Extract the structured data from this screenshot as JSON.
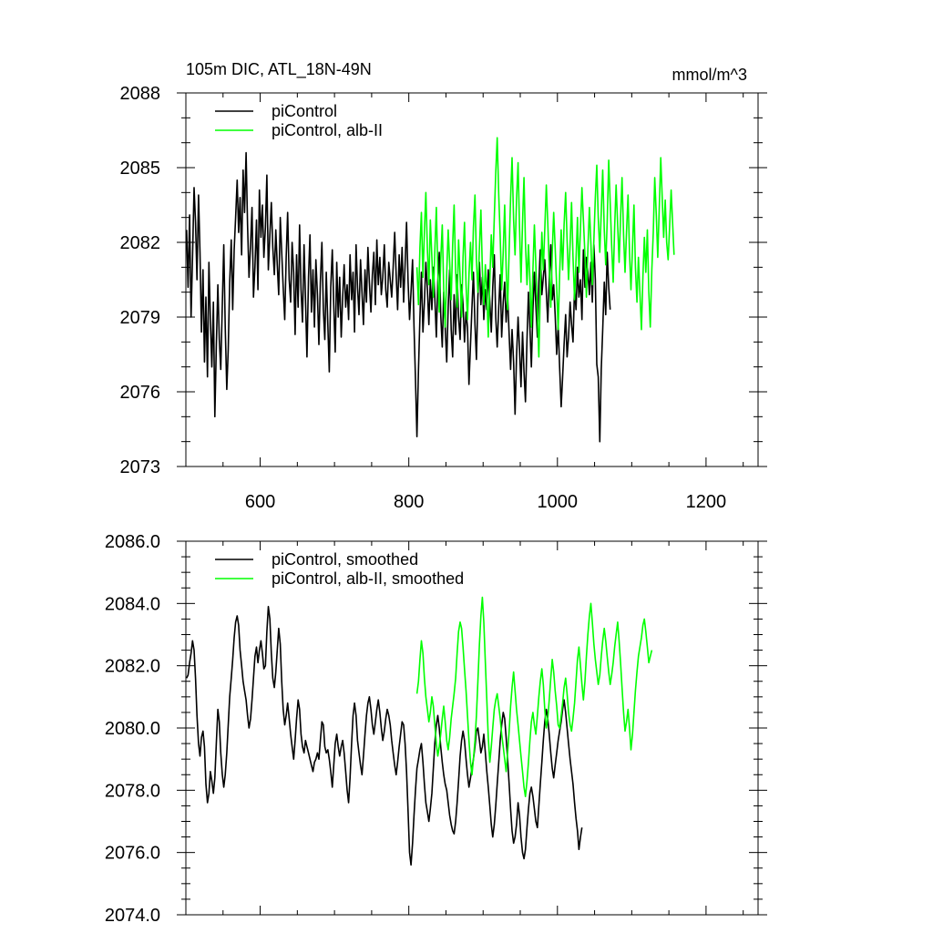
{
  "figure": {
    "title_left": "105m DIC, ATL_18N-49N",
    "title_right": "mmol/m^3"
  },
  "chart_data": [
    {
      "type": "line",
      "xlim": [
        500,
        1270
      ],
      "ylim": [
        2073,
        2088
      ],
      "xticks": [
        600,
        800,
        1000,
        1200
      ],
      "xtick_labels": [
        "600",
        "800",
        "1000",
        "1200"
      ],
      "yticks": [
        2073,
        2076,
        2079,
        2082,
        2085,
        2088
      ],
      "ytick_labels": [
        "2073",
        "2076",
        "2079",
        "2082",
        "2085",
        "2088"
      ],
      "legend_position": "top-left",
      "series": [
        {
          "name": "piControl",
          "color": "#000000",
          "x_start": 501,
          "x_step": 2,
          "values": [
            2082.5,
            2080.2,
            2083.1,
            2079.0,
            2081.4,
            2084.2,
            2082.8,
            2080.5,
            2083.9,
            2081.6,
            2078.4,
            2080.9,
            2077.2,
            2079.8,
            2076.6,
            2081.2,
            2078.9,
            2077.0,
            2079.6,
            2075.0,
            2077.8,
            2080.3,
            2078.1,
            2076.9,
            2079.5,
            2081.9,
            2078.6,
            2076.1,
            2077.7,
            2080.4,
            2082.1,
            2079.3,
            2081.7,
            2083.0,
            2084.5,
            2082.4,
            2083.8,
            2081.5,
            2084.9,
            2083.2,
            2085.6,
            2082.7,
            2080.6,
            2081.9,
            2083.4,
            2079.8,
            2081.0,
            2082.9,
            2080.1,
            2084.1,
            2082.2,
            2083.5,
            2081.4,
            2082.6,
            2084.7,
            2080.9,
            2082.3,
            2083.6,
            2081.8,
            2080.7,
            2082.5,
            2081.1,
            2079.9,
            2083.0,
            2081.6,
            2080.2,
            2078.9,
            2081.4,
            2083.2,
            2080.5,
            2079.6,
            2082.0,
            2080.8,
            2078.3,
            2081.5,
            2079.4,
            2082.7,
            2080.1,
            2078.8,
            2081.9,
            2079.7,
            2077.4,
            2080.6,
            2082.3,
            2079.2,
            2080.9,
            2078.6,
            2081.3,
            2079.9,
            2077.9,
            2080.4,
            2082.0,
            2079.3,
            2078.1,
            2080.8,
            2078.7,
            2076.8,
            2080.2,
            2081.7,
            2079.5,
            2077.6,
            2081.2,
            2079.0,
            2080.6,
            2078.2,
            2079.8,
            2081.1,
            2079.4,
            2080.3,
            2078.9,
            2081.5,
            2079.7,
            2080.8,
            2078.4,
            2081.9,
            2080.2,
            2079.1,
            2081.3,
            2080.0,
            2078.7,
            2080.9,
            2079.6,
            2081.8,
            2080.4,
            2079.2,
            2080.7,
            2081.6,
            2079.5,
            2082.1,
            2080.3,
            2081.4,
            2079.9,
            2080.6,
            2081.9,
            2080.1,
            2079.4,
            2081.2,
            2080.5,
            2079.8,
            2081.0,
            2082.4,
            2080.7,
            2079.3,
            2081.5,
            2080.2,
            2081.8,
            2079.6,
            2081.1,
            2082.8,
            2080.4,
            2078.9,
            2080.0,
            2081.3,
            2078.6,
            2076.5,
            2074.2,
            2076.9,
            2079.0,
            2080.8,
            2078.4,
            2079.6,
            2081.2,
            2080.1,
            2078.7,
            2080.5,
            2079.3,
            2081.0,
            2079.8,
            2078.2,
            2080.4,
            2081.6,
            2079.1,
            2077.8,
            2080.0,
            2078.6,
            2077.2,
            2079.4,
            2080.9,
            2078.5,
            2077.4,
            2079.9,
            2078.3,
            2080.7,
            2079.0,
            2078.1,
            2080.3,
            2079.5,
            2078.0,
            2079.2,
            2078.6,
            2076.3,
            2077.9,
            2079.4,
            2080.8,
            2078.7,
            2077.3,
            2079.8,
            2081.2,
            2079.5,
            2080.6,
            2078.9,
            2080.1,
            2079.3,
            2080.9,
            2079.6,
            2078.4,
            2080.2,
            2081.5,
            2079.0,
            2077.8,
            2079.4,
            2080.7,
            2078.2,
            2079.6,
            2080.4,
            2078.8,
            2079.9,
            2078.3,
            2076.9,
            2078.5,
            2077.2,
            2075.1,
            2077.4,
            2079.0,
            2077.7,
            2076.2,
            2078.4,
            2076.8,
            2075.6,
            2078.1,
            2080.0,
            2078.6,
            2077.0,
            2079.3,
            2080.8,
            2079.5,
            2078.2,
            2080.4,
            2081.7,
            2079.9,
            2080.6,
            2081.3,
            2080.0,
            2078.8,
            2080.5,
            2081.9,
            2079.7,
            2080.3,
            2079.1,
            2077.5,
            2078.7,
            2077.0,
            2075.4,
            2076.6,
            2077.9,
            2079.1,
            2077.4,
            2078.2,
            2079.6,
            2078.7,
            2078.0,
            2080.2,
            2079.3,
            2081.0,
            2079.8,
            2080.5,
            2078.9,
            2081.7,
            2080.2,
            2081.4,
            2080.8,
            2079.9,
            2081.2,
            2079.6,
            2081.9,
            2080.5,
            2077.1,
            2076.6,
            2074.0,
            2076.9,
            2078.5,
            2080.4,
            2079.1,
            2081.6,
            2080.2,
            2079.3
          ]
        },
        {
          "name": "piControl, alb-II",
          "color": "#00ff00",
          "x_start": 811,
          "x_step": 2,
          "values": [
            2081.0,
            2079.5,
            2081.8,
            2083.2,
            2080.6,
            2082.4,
            2084.0,
            2081.7,
            2080.3,
            2082.9,
            2081.4,
            2079.8,
            2081.6,
            2083.4,
            2080.9,
            2079.2,
            2081.3,
            2082.7,
            2080.1,
            2078.6,
            2080.8,
            2082.5,
            2081.2,
            2079.7,
            2081.9,
            2083.5,
            2080.8,
            2079.4,
            2082.1,
            2080.6,
            2079.0,
            2081.4,
            2082.8,
            2080.3,
            2078.9,
            2080.7,
            2082.0,
            2080.5,
            2082.6,
            2083.9,
            2081.3,
            2080.0,
            2081.8,
            2083.3,
            2080.9,
            2079.5,
            2081.1,
            2080.0,
            2078.2,
            2080.5,
            2082.3,
            2081.0,
            2083.0,
            2084.8,
            2086.2,
            2083.9,
            2082.2,
            2080.1,
            2081.6,
            2083.5,
            2081.0,
            2079.3,
            2081.7,
            2083.8,
            2085.4,
            2082.9,
            2081.5,
            2083.7,
            2085.2,
            2082.6,
            2080.4,
            2082.8,
            2084.6,
            2082.0,
            2080.3,
            2081.9,
            2080.5,
            2078.6,
            2080.9,
            2082.7,
            2081.1,
            2079.2,
            2077.4,
            2080.1,
            2082.4,
            2080.9,
            2082.5,
            2084.3,
            2082.8,
            2081.0,
            2079.4,
            2081.6,
            2083.2,
            2081.8,
            2080.2,
            2078.5,
            2080.7,
            2082.5,
            2080.9,
            2082.7,
            2084.0,
            2082.1,
            2080.5,
            2081.9,
            2083.6,
            2081.4,
            2079.7,
            2081.3,
            2083.0,
            2080.8,
            2082.6,
            2084.2,
            2082.9,
            2081.5,
            2079.8,
            2081.7,
            2083.4,
            2082.0,
            2080.3,
            2082.1,
            2083.8,
            2085.1,
            2083.0,
            2081.6,
            2083.2,
            2084.9,
            2082.5,
            2081.1,
            2082.8,
            2085.3,
            2083.6,
            2081.9,
            2080.4,
            2082.6,
            2084.3,
            2082.7,
            2081.2,
            2083.0,
            2084.6,
            2082.3,
            2080.8,
            2082.4,
            2083.9,
            2081.6,
            2080.1,
            2081.8,
            2083.5,
            2081.0,
            2079.6,
            2081.4,
            2080.0,
            2078.5,
            2080.6,
            2082.2,
            2080.8,
            2082.5,
            2080.0,
            2078.6,
            2080.9,
            2082.4,
            2084.6,
            2083.1,
            2081.4,
            2083.3,
            2085.4,
            2083.8,
            2082.2,
            2083.7,
            2082.0,
            2081.3,
            2082.6,
            2084.1,
            2082.8,
            2081.5
          ]
        }
      ]
    },
    {
      "type": "line",
      "xlim": [
        500,
        1270
      ],
      "ylim": [
        2074,
        2086
      ],
      "xticks": [
        600,
        800,
        1000,
        1200
      ],
      "xtick_labels": [],
      "yticks": [
        2074,
        2076,
        2078,
        2080,
        2082,
        2084,
        2086
      ],
      "ytick_labels": [
        "2074.0",
        "2076.0",
        "2078.0",
        "2080.0",
        "2082.0",
        "2084.0",
        "2086.0"
      ],
      "legend_position": "top-left",
      "series": [
        {
          "name": "piControl, smoothed",
          "color": "#000000",
          "x_start": 501,
          "x_step": 2,
          "values": [
            2081.6,
            2081.7,
            2082.1,
            2082.4,
            2082.8,
            2082.5,
            2081.6,
            2080.4,
            2079.5,
            2079.1,
            2079.7,
            2079.9,
            2079.4,
            2078.2,
            2077.6,
            2077.9,
            2078.6,
            2078.3,
            2077.9,
            2078.4,
            2079.5,
            2080.6,
            2080.2,
            2079.2,
            2078.5,
            2078.1,
            2078.5,
            2079.2,
            2080.1,
            2081.0,
            2081.6,
            2082.2,
            2082.9,
            2083.4,
            2083.6,
            2083.3,
            2082.5,
            2082.0,
            2081.5,
            2081.2,
            2080.9,
            2080.4,
            2080.0,
            2080.3,
            2080.9,
            2081.6,
            2082.3,
            2082.6,
            2082.1,
            2082.5,
            2082.8,
            2082.4,
            2081.9,
            2082.0,
            2083.1,
            2083.9,
            2083.5,
            2082.4,
            2081.6,
            2081.3,
            2081.8,
            2082.5,
            2083.2,
            2082.7,
            2081.5,
            2080.6,
            2080.1,
            2080.4,
            2080.8,
            2080.3,
            2079.8,
            2079.4,
            2079.0,
            2079.6,
            2080.3,
            2080.9,
            2080.6,
            2079.8,
            2079.4,
            2079.2,
            2079.6,
            2079.4,
            2079.2,
            2079.0,
            2078.8,
            2078.6,
            2078.9,
            2079.0,
            2079.2,
            2079.0,
            2079.6,
            2080.2,
            2080.1,
            2079.4,
            2079.2,
            2079.3,
            2079.0,
            2078.6,
            2078.1,
            2078.8,
            2079.5,
            2079.8,
            2079.4,
            2079.1,
            2079.4,
            2079.6,
            2079.2,
            2078.6,
            2078.0,
            2077.6,
            2078.4,
            2079.5,
            2080.4,
            2080.8,
            2080.4,
            2079.6,
            2079.2,
            2078.8,
            2078.5,
            2079.1,
            2079.8,
            2080.4,
            2080.8,
            2081.0,
            2080.6,
            2080.1,
            2079.8,
            2080.2,
            2080.6,
            2080.9,
            2080.5,
            2080.0,
            2079.6,
            2079.9,
            2080.3,
            2080.6,
            2080.4,
            2080.1,
            2079.6,
            2079.2,
            2078.8,
            2078.5,
            2078.9,
            2079.4,
            2079.8,
            2080.2,
            2080.1,
            2079.5,
            2078.6,
            2077.3,
            2076.0,
            2075.6,
            2076.3,
            2077.2,
            2078.0,
            2078.7,
            2079.0,
            2079.3,
            2079.5,
            2078.9,
            2078.2,
            2077.6,
            2077.3,
            2077.0,
            2077.4,
            2077.9,
            2078.7,
            2079.5,
            2080.1,
            2080.4,
            2080.0,
            2079.4,
            2078.9,
            2078.5,
            2078.2,
            2078.0,
            2077.6,
            2077.2,
            2076.9,
            2076.7,
            2076.6,
            2077.0,
            2077.6,
            2078.3,
            2079.1,
            2079.6,
            2079.9,
            2079.6,
            2079.0,
            2078.5,
            2078.1,
            2078.4,
            2078.7,
            2079.0,
            2079.4,
            2079.9,
            2080.0,
            2079.6,
            2079.2,
            2079.4,
            2079.8,
            2079.2,
            2078.6,
            2078.1,
            2077.5,
            2076.9,
            2076.5,
            2076.9,
            2077.5,
            2078.2,
            2078.9,
            2079.6,
            2080.1,
            2080.5,
            2080.3,
            2079.7,
            2079.0,
            2078.2,
            2077.4,
            2076.7,
            2076.3,
            2076.5,
            2076.9,
            2077.6,
            2077.2,
            2076.5,
            2076.0,
            2075.8,
            2076.1,
            2076.8,
            2077.4,
            2077.9,
            2078.1,
            2077.8,
            2077.4,
            2077.0,
            2076.8,
            2077.5,
            2078.2,
            2078.9,
            2079.6,
            2080.2,
            2080.6,
            2080.3,
            2079.8,
            2079.2,
            2078.7,
            2078.4,
            2078.8,
            2079.2,
            2079.6,
            2079.9,
            2080.2,
            2080.6,
            2080.9,
            2080.5,
            2080.0,
            2079.5,
            2079.0,
            2078.6,
            2078.2,
            2077.6,
            2077.1,
            2076.7,
            2076.1,
            2076.5,
            2076.8
          ]
        },
        {
          "name": "piControl, alb-II, smoothed",
          "color": "#00ff00",
          "x_start": 811,
          "x_step": 2,
          "values": [
            2081.1,
            2081.5,
            2082.2,
            2082.8,
            2082.4,
            2081.6,
            2081.0,
            2080.6,
            2080.2,
            2080.5,
            2081.0,
            2080.7,
            2080.1,
            2079.5,
            2079.1,
            2079.4,
            2079.8,
            2080.3,
            2080.7,
            2080.2,
            2079.6,
            2079.3,
            2079.7,
            2080.3,
            2080.7,
            2081.1,
            2081.6,
            2082.4,
            2083.1,
            2083.4,
            2083.2,
            2082.6,
            2081.9,
            2081.2,
            2080.4,
            2079.6,
            2078.9,
            2078.5,
            2079.0,
            2079.6,
            2080.4,
            2081.5,
            2082.7,
            2083.6,
            2084.2,
            2083.4,
            2082.1,
            2080.9,
            2079.7,
            2078.9,
            2079.4,
            2080.0,
            2080.6,
            2080.9,
            2081.1,
            2080.7,
            2080.3,
            2079.8,
            2079.4,
            2079.0,
            2078.6,
            2079.2,
            2079.9,
            2080.7,
            2081.3,
            2081.8,
            2081.2,
            2080.6,
            2080.1,
            2079.6,
            2079.1,
            2078.6,
            2078.1,
            2077.8,
            2078.3,
            2078.9,
            2079.6,
            2080.2,
            2080.5,
            2080.1,
            2079.8,
            2080.4,
            2081.0,
            2081.5,
            2081.9,
            2081.4,
            2080.6,
            2080.0,
            2080.3,
            2080.9,
            2081.6,
            2082.2,
            2081.8,
            2081.2,
            2080.7,
            2080.1,
            2080.0,
            2080.4,
            2080.8,
            2081.3,
            2081.6,
            2081.1,
            2080.5,
            2080.1,
            2079.9,
            2080.3,
            2080.8,
            2081.5,
            2082.2,
            2082.6,
            2082.0,
            2081.4,
            2080.9,
            2081.5,
            2082.3,
            2083.0,
            2083.6,
            2084.0,
            2083.4,
            2082.7,
            2082.2,
            2081.8,
            2081.4,
            2081.7,
            2082.3,
            2082.8,
            2083.2,
            2082.8,
            2082.3,
            2081.8,
            2081.4,
            2081.7,
            2082.1,
            2082.6,
            2083.0,
            2083.4,
            2082.8,
            2082.1,
            2081.3,
            2080.5,
            2079.9,
            2080.2,
            2080.6,
            2080.0,
            2079.3,
            2079.8,
            2080.5,
            2081.2,
            2081.8,
            2082.3,
            2082.6,
            2082.9,
            2083.3,
            2083.5,
            2083.1,
            2082.6,
            2082.1,
            2082.3,
            2082.5
          ]
        }
      ]
    }
  ]
}
